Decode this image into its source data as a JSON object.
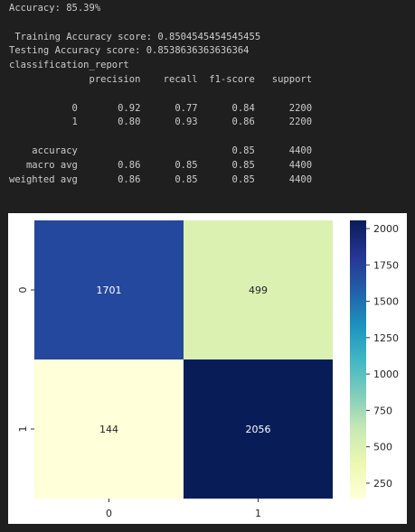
{
  "output": {
    "accuracy_line": "Accuracy: 85.39%",
    "blank1": "",
    "train_line": " Training Accuracy score: 0.8504545454545455",
    "test_line": "Testing Accuracy score: 0.8538636363636364",
    "report_title": "classification_report",
    "report_header": "              precision    recall  f1-score   support",
    "blank2": "",
    "row_0": "           0       0.92      0.77      0.84      2200",
    "row_1": "           1       0.80      0.93      0.86      2200",
    "blank3": "",
    "row_accuracy": "    accuracy                           0.85      4400",
    "row_macro": "   macro avg       0.86      0.85      0.85      4400",
    "row_weighted": "weighted avg       0.86      0.85      0.85      4400"
  },
  "chart_data": {
    "type": "heatmap",
    "title": "",
    "xlabel": "",
    "ylabel": "",
    "x_categories": [
      "0",
      "1"
    ],
    "y_categories": [
      "0",
      "1"
    ],
    "values": [
      [
        1701,
        499
      ],
      [
        144,
        2056
      ]
    ],
    "colormap": "YlGnBu",
    "colorbar": {
      "min": 144,
      "max": 2056,
      "ticks": [
        250,
        500,
        750,
        1000,
        1250,
        1500,
        1750,
        2000
      ],
      "tick_labels": [
        "250",
        "500",
        "750",
        "1000",
        "1250",
        "1500",
        "1750",
        "2000"
      ]
    }
  },
  "colors": {
    "background": "#1f1f1f",
    "text": "#cccccc",
    "figure_bg": "#ffffff"
  }
}
